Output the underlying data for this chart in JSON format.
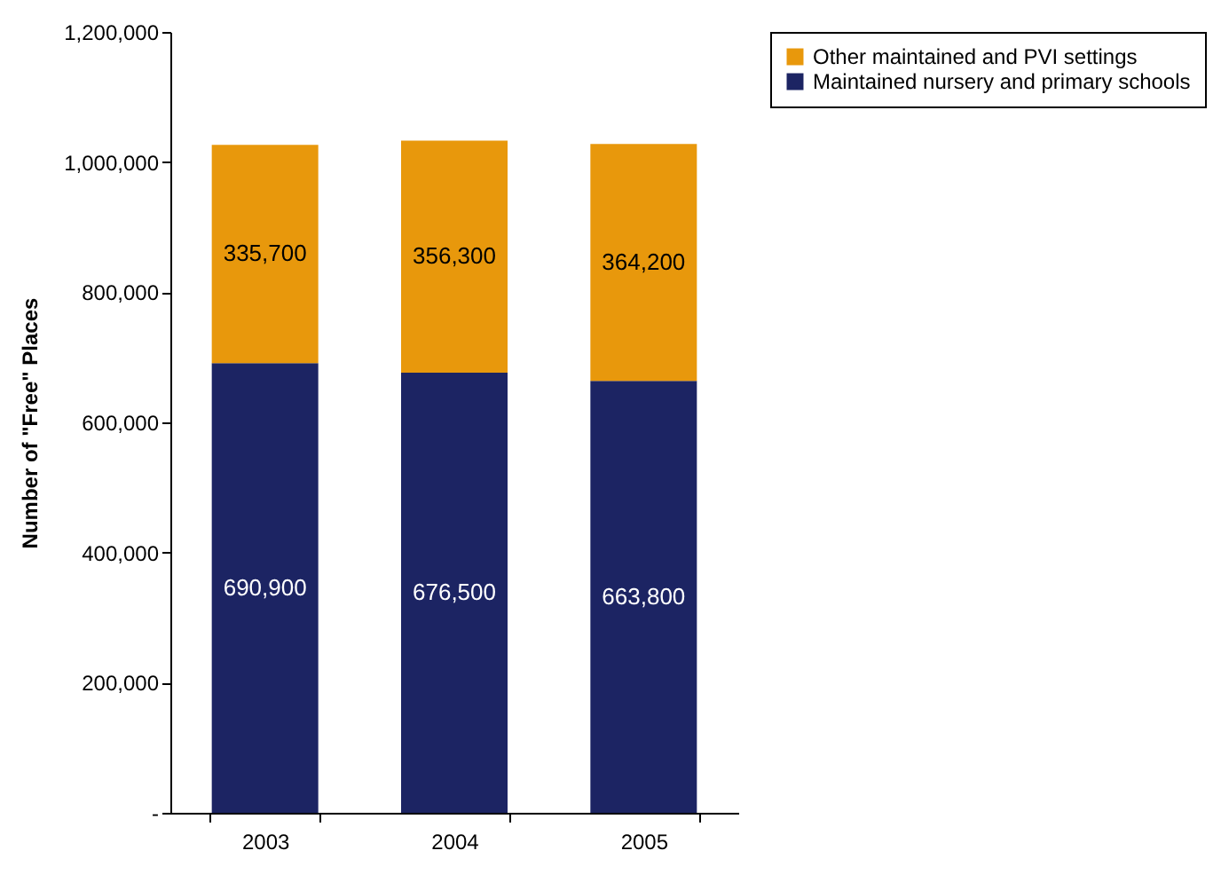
{
  "chart_data": {
    "type": "bar",
    "stacked": true,
    "categories": [
      "2003",
      "2004",
      "2005"
    ],
    "series": [
      {
        "name": "Maintained nursery and primary schools",
        "color": "#1c2463",
        "values": [
          690900,
          676500,
          663800
        ],
        "value_labels": [
          "690,900",
          "676,500",
          "663,800"
        ]
      },
      {
        "name": "Other maintained and PVI settings",
        "color": "#e8980c",
        "values": [
          335700,
          356300,
          364200
        ],
        "value_labels": [
          "335,700",
          "356,300",
          "364,200"
        ]
      }
    ],
    "ylabel": "Number of \"Free\" Places",
    "ylim": [
      0,
      1200000
    ],
    "yticks": [
      {
        "value": 0,
        "label": "-"
      },
      {
        "value": 200000,
        "label": "200,000"
      },
      {
        "value": 400000,
        "label": "400,000"
      },
      {
        "value": 600000,
        "label": "600,000"
      },
      {
        "value": 800000,
        "label": "800,000"
      },
      {
        "value": 1000000,
        "label": "1,000,000"
      },
      {
        "value": 1200000,
        "label": "1,200,000"
      }
    ],
    "legend": "right",
    "grid": false
  }
}
